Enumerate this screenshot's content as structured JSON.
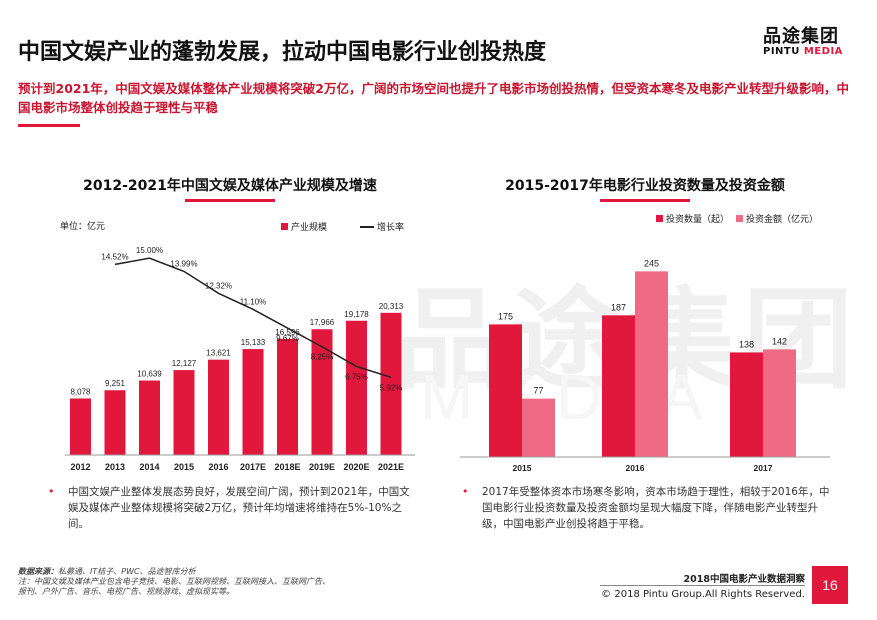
{
  "header": {
    "title": "中国文娱产业的蓬勃发展，拉动中国电影行业创投热度",
    "logo_cn": "品途集团",
    "logo_en_a": "PINTU",
    "logo_en_b": "MEDIA",
    "subtitle": "预计到2021年，中国文娱及媒体整体产业规模将突破2万亿，广阔的市场空间也提升了电影市场创投热情，但受资本寒冬及电影产业转型升级影响，中国电影市场整体创投趋于理性与平稳"
  },
  "watermark": {
    "cn": "品途集团",
    "en": "MEDIA"
  },
  "colors": {
    "accent": "#e1173c",
    "secondary": "#f06a86",
    "line": "#222222"
  },
  "chart_data": [
    {
      "type": "bar",
      "title": "2012-2021年中国文娱及媒体产业规模及增速",
      "unit_label": "单位：亿元",
      "categories": [
        "2012",
        "2013",
        "2014",
        "2015",
        "2016",
        "2017E",
        "2018E",
        "2019E",
        "2020E",
        "2021E"
      ],
      "series": [
        {
          "name": "产业规模",
          "kind": "bar",
          "values": [
            8078,
            9251,
            10639,
            12127,
            13621,
            15133,
            16596,
            17966,
            19178,
            20313
          ]
        },
        {
          "name": "增长率",
          "kind": "line",
          "values": [
            null,
            14.52,
            15.0,
            13.99,
            12.32,
            11.1,
            9.67,
            8.25,
            6.75,
            5.92
          ]
        }
      ],
      "bar_labels": [
        "8,078",
        "9,251",
        "10,639",
        "12,127",
        "13,621",
        "15,133",
        "16,596",
        "17,966",
        "19,178",
        "20,313"
      ],
      "line_labels": [
        "",
        "14.52%",
        "15.00%",
        "13.99%",
        "12.32%",
        "11.10%",
        "9.67%",
        "8.25%",
        "6.75%",
        "5.92%"
      ],
      "ylim": [
        0,
        30000
      ],
      "line_ylim": [
        0,
        16
      ],
      "legend_position": "top-right"
    },
    {
      "type": "bar",
      "title": "2015-2017年电影行业投资数量及投资金额",
      "categories": [
        "2015",
        "2016",
        "2017"
      ],
      "series": [
        {
          "name": "投资数量（起）",
          "values": [
            175,
            187,
            138
          ]
        },
        {
          "name": "投资金额（亿元）",
          "values": [
            77,
            245,
            142
          ]
        }
      ],
      "ylim": [
        0,
        260
      ],
      "legend_position": "top-right"
    }
  ],
  "notes": {
    "left": "中国文娱产业整体发展态势良好，发展空间广阔，预计到2021年，中国文娱及媒体产业整体规模将突破2万亿，预计年均增速将维持在5%-10%之间。",
    "right": "2017年受整体资本市场寒冬影响，资本市场趋于理性，相较于2016年，中国电影行业投资数量及投资金额均呈现大幅度下降，伴随电影产业转型升级，中国电影产业创投将趋于平稳。"
  },
  "source": {
    "head": "数据来源：",
    "text": "私募通、IT桔子、PWC、品途智库分析",
    "note1": "注：中国文娱及媒体产业包含电子竞技、电影、互联网视频、互联网接入、互联网广告、",
    "note2": "报刊、户外广告、音乐、电视广告、视频游戏、虚拟现实等。"
  },
  "footer": {
    "report_title": "2018中国电影产业数据洞察",
    "copyright": "© 2018 Pintu Group.All Rights Reserved.",
    "page_number": "16"
  }
}
